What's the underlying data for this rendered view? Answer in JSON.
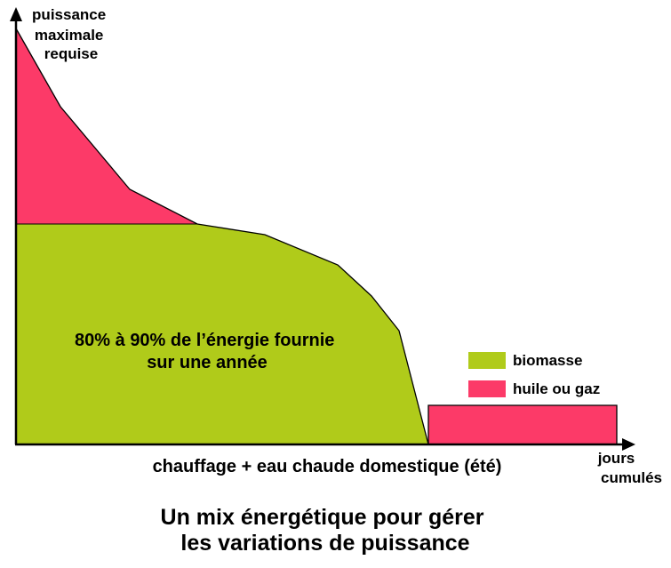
{
  "colors": {
    "biomasse": "#b0cb1a",
    "huile": "#fc3a68",
    "outline": "#000000"
  },
  "chart_data": {
    "type": "area",
    "axis": {
      "y_label": [
        "puissance",
        "maximale",
        "requise"
      ],
      "x_label": [
        "jours",
        "cumulés"
      ]
    },
    "series": [
      {
        "name": "biomasse",
        "color": "#b0cb1a"
      },
      {
        "name": "huile ou gaz",
        "color": "#fc3a68"
      }
    ],
    "annotations": {
      "center": [
        "80% à 90% de l’énergie fournie",
        "sur une année"
      ],
      "summer": "chauffage + eau chaude domestique (été)"
    },
    "legend": [
      {
        "label": "biomasse",
        "color": "#b0cb1a"
      },
      {
        "label": "huile ou gaz",
        "color": "#fc3a68"
      }
    ],
    "legend_position": "right"
  },
  "title": [
    "Un mix énergétique pour gérer",
    "les variations de puissance"
  ]
}
